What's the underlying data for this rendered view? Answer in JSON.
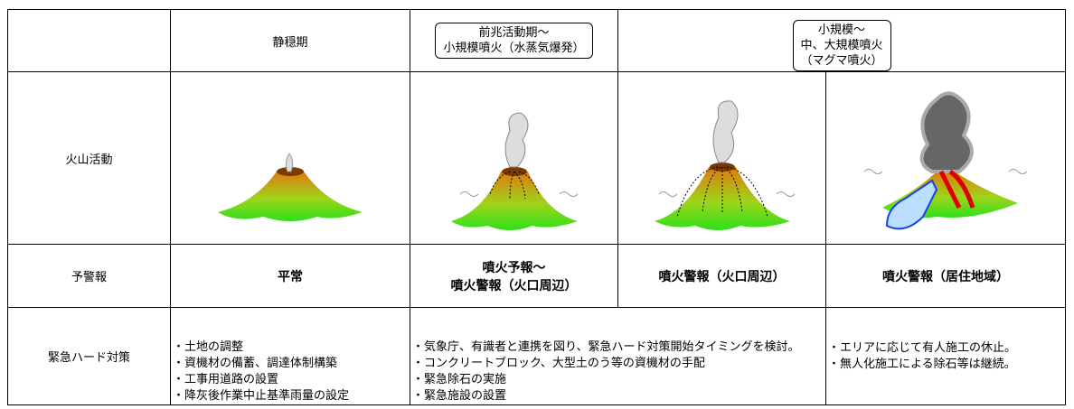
{
  "header": {
    "stages": [
      "静穏期",
      "前兆活動期～",
      "小規模噴火（水蒸気爆発）",
      "小規模～",
      "中、大規模噴火",
      "（マグマ噴火）"
    ]
  },
  "rows": [
    {
      "label": "火山活動"
    },
    {
      "label": "予警報",
      "cells": [
        [
          "平常"
        ],
        [
          "噴火予報～",
          "噴火警報（火口周辺）"
        ],
        [
          "噴火警報（火口周辺）"
        ],
        [
          "噴火警報（居住地域）"
        ]
      ]
    },
    {
      "label": "緊急ハード対策",
      "cells": [
        [
          "・土地の調整",
          "・資機材の備蓄、調達体制構築",
          "・工事用道路の設置",
          "・降灰後作業中止基準雨量の設定"
        ],
        [
          "・気象庁、有識者と連携を図り、緊急ハード対策開始タイミングを検討。",
          "・コンクリートブロック、大型土のう等の資機材の手配",
          "・緊急除石の実施",
          "・緊急施設の設置"
        ],
        [
          "・エリアに応じて有人施工の休止。",
          "・無人化施工による除石等は継続。"
        ]
      ]
    }
  ]
}
